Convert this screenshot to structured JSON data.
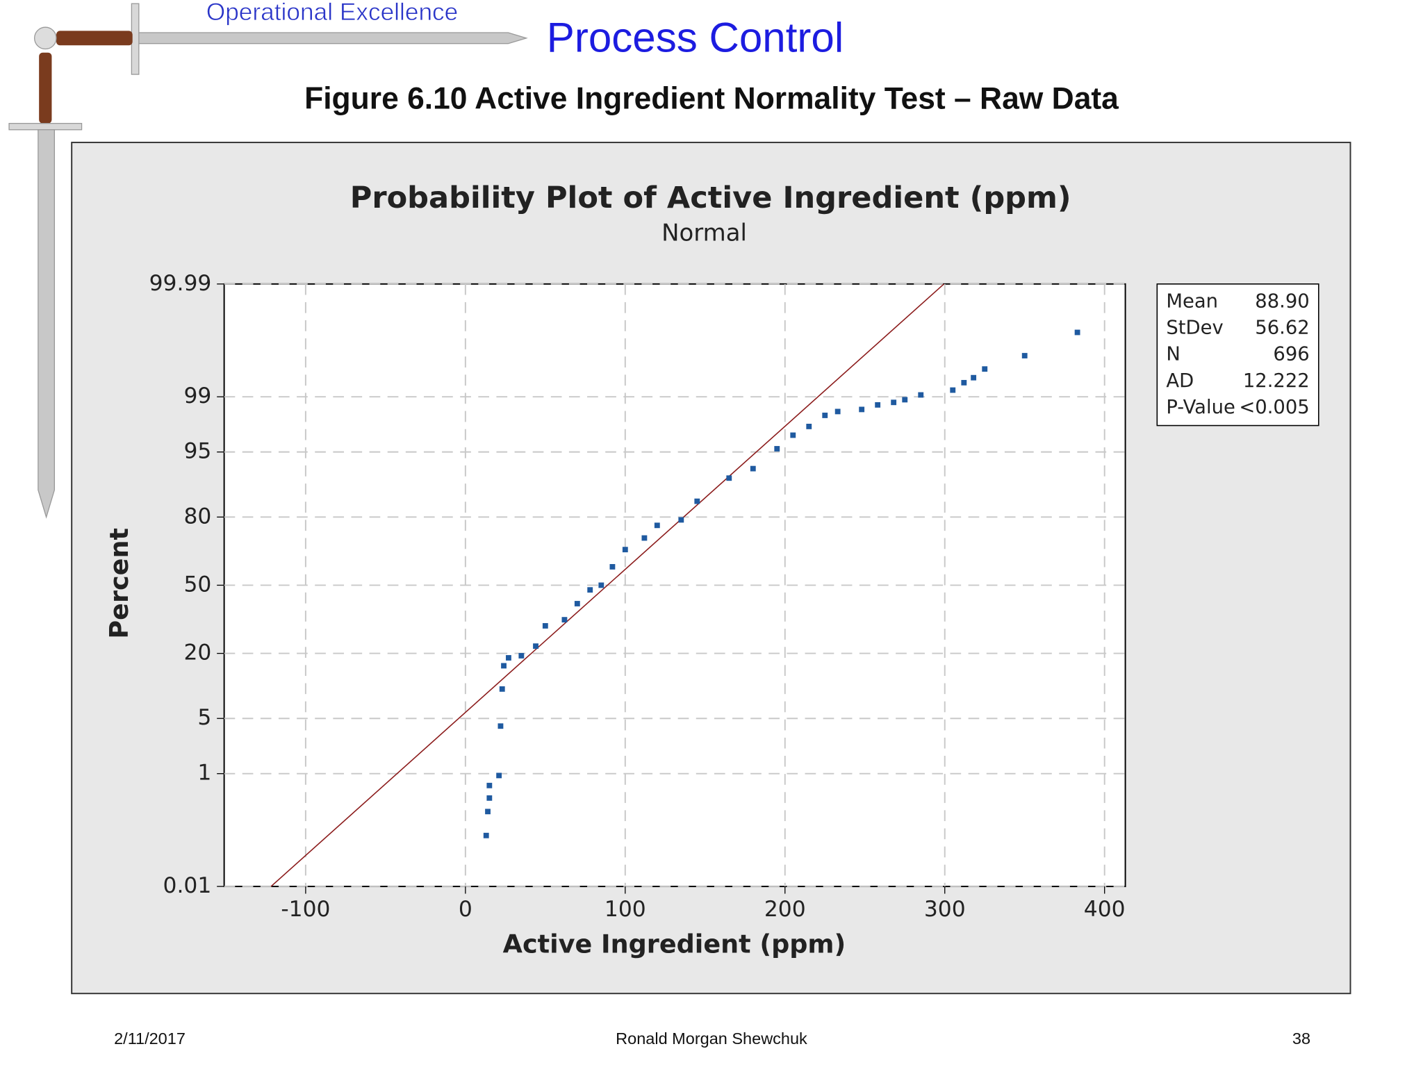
{
  "header": {
    "brand": "Operational Excellence",
    "title": "Process Control",
    "caption": "Figure 6.10  Active Ingredient Normality Test – Raw Data"
  },
  "chart_data": {
    "type": "probability",
    "title": "Probability Plot of Active Ingredient (ppm)",
    "subtitle": "Normal",
    "x_label": "Active Ingredient (ppm)",
    "y_label": "Percent",
    "yscale": "normal-probability",
    "grid": true,
    "color": "#1f5aa0",
    "fit_color": "#8b1a1a",
    "xlim": [
      -151,
      413
    ],
    "xticks": [
      -100,
      0,
      100,
      200,
      300,
      400
    ],
    "ylim": [
      0.01,
      99.99
    ],
    "yticks": [
      0.01,
      1,
      5,
      20,
      50,
      80,
      95,
      99,
      99.99
    ],
    "x": [
      13,
      14,
      15,
      15,
      21,
      22,
      23,
      24,
      27,
      35,
      44,
      50,
      62,
      70,
      78,
      85,
      92,
      100,
      112,
      120,
      135,
      145,
      165,
      180,
      195,
      205,
      215,
      225,
      233,
      248,
      258,
      268,
      275,
      285,
      305,
      312,
      318,
      325,
      350,
      383
    ],
    "values": [
      0.1,
      0.26,
      0.43,
      0.67,
      0.94,
      4.1,
      10,
      16,
      18.5,
      19.2,
      22.6,
      30.8,
      33.5,
      41,
      47.7,
      50,
      59,
      67,
      72,
      77,
      79,
      85,
      90.7,
      92.5,
      95.4,
      96.8,
      97.5,
      98.2,
      98.4,
      98.5,
      98.7,
      98.8,
      98.9,
      99.06,
      99.2,
      99.38,
      99.48,
      99.62,
      99.77,
      99.91
    ],
    "stats": [
      {
        "name": "Mean",
        "value": "88.90"
      },
      {
        "name": "StDev",
        "value": "56.62"
      },
      {
        "name": "N",
        "value": "696"
      },
      {
        "name": "AD",
        "value": "12.222"
      },
      {
        "name": "P-Value",
        "value": "<0.005"
      }
    ]
  },
  "footer": {
    "date": "2/11/2017",
    "author": "Ronald Morgan Shewchuk",
    "page": "38"
  }
}
